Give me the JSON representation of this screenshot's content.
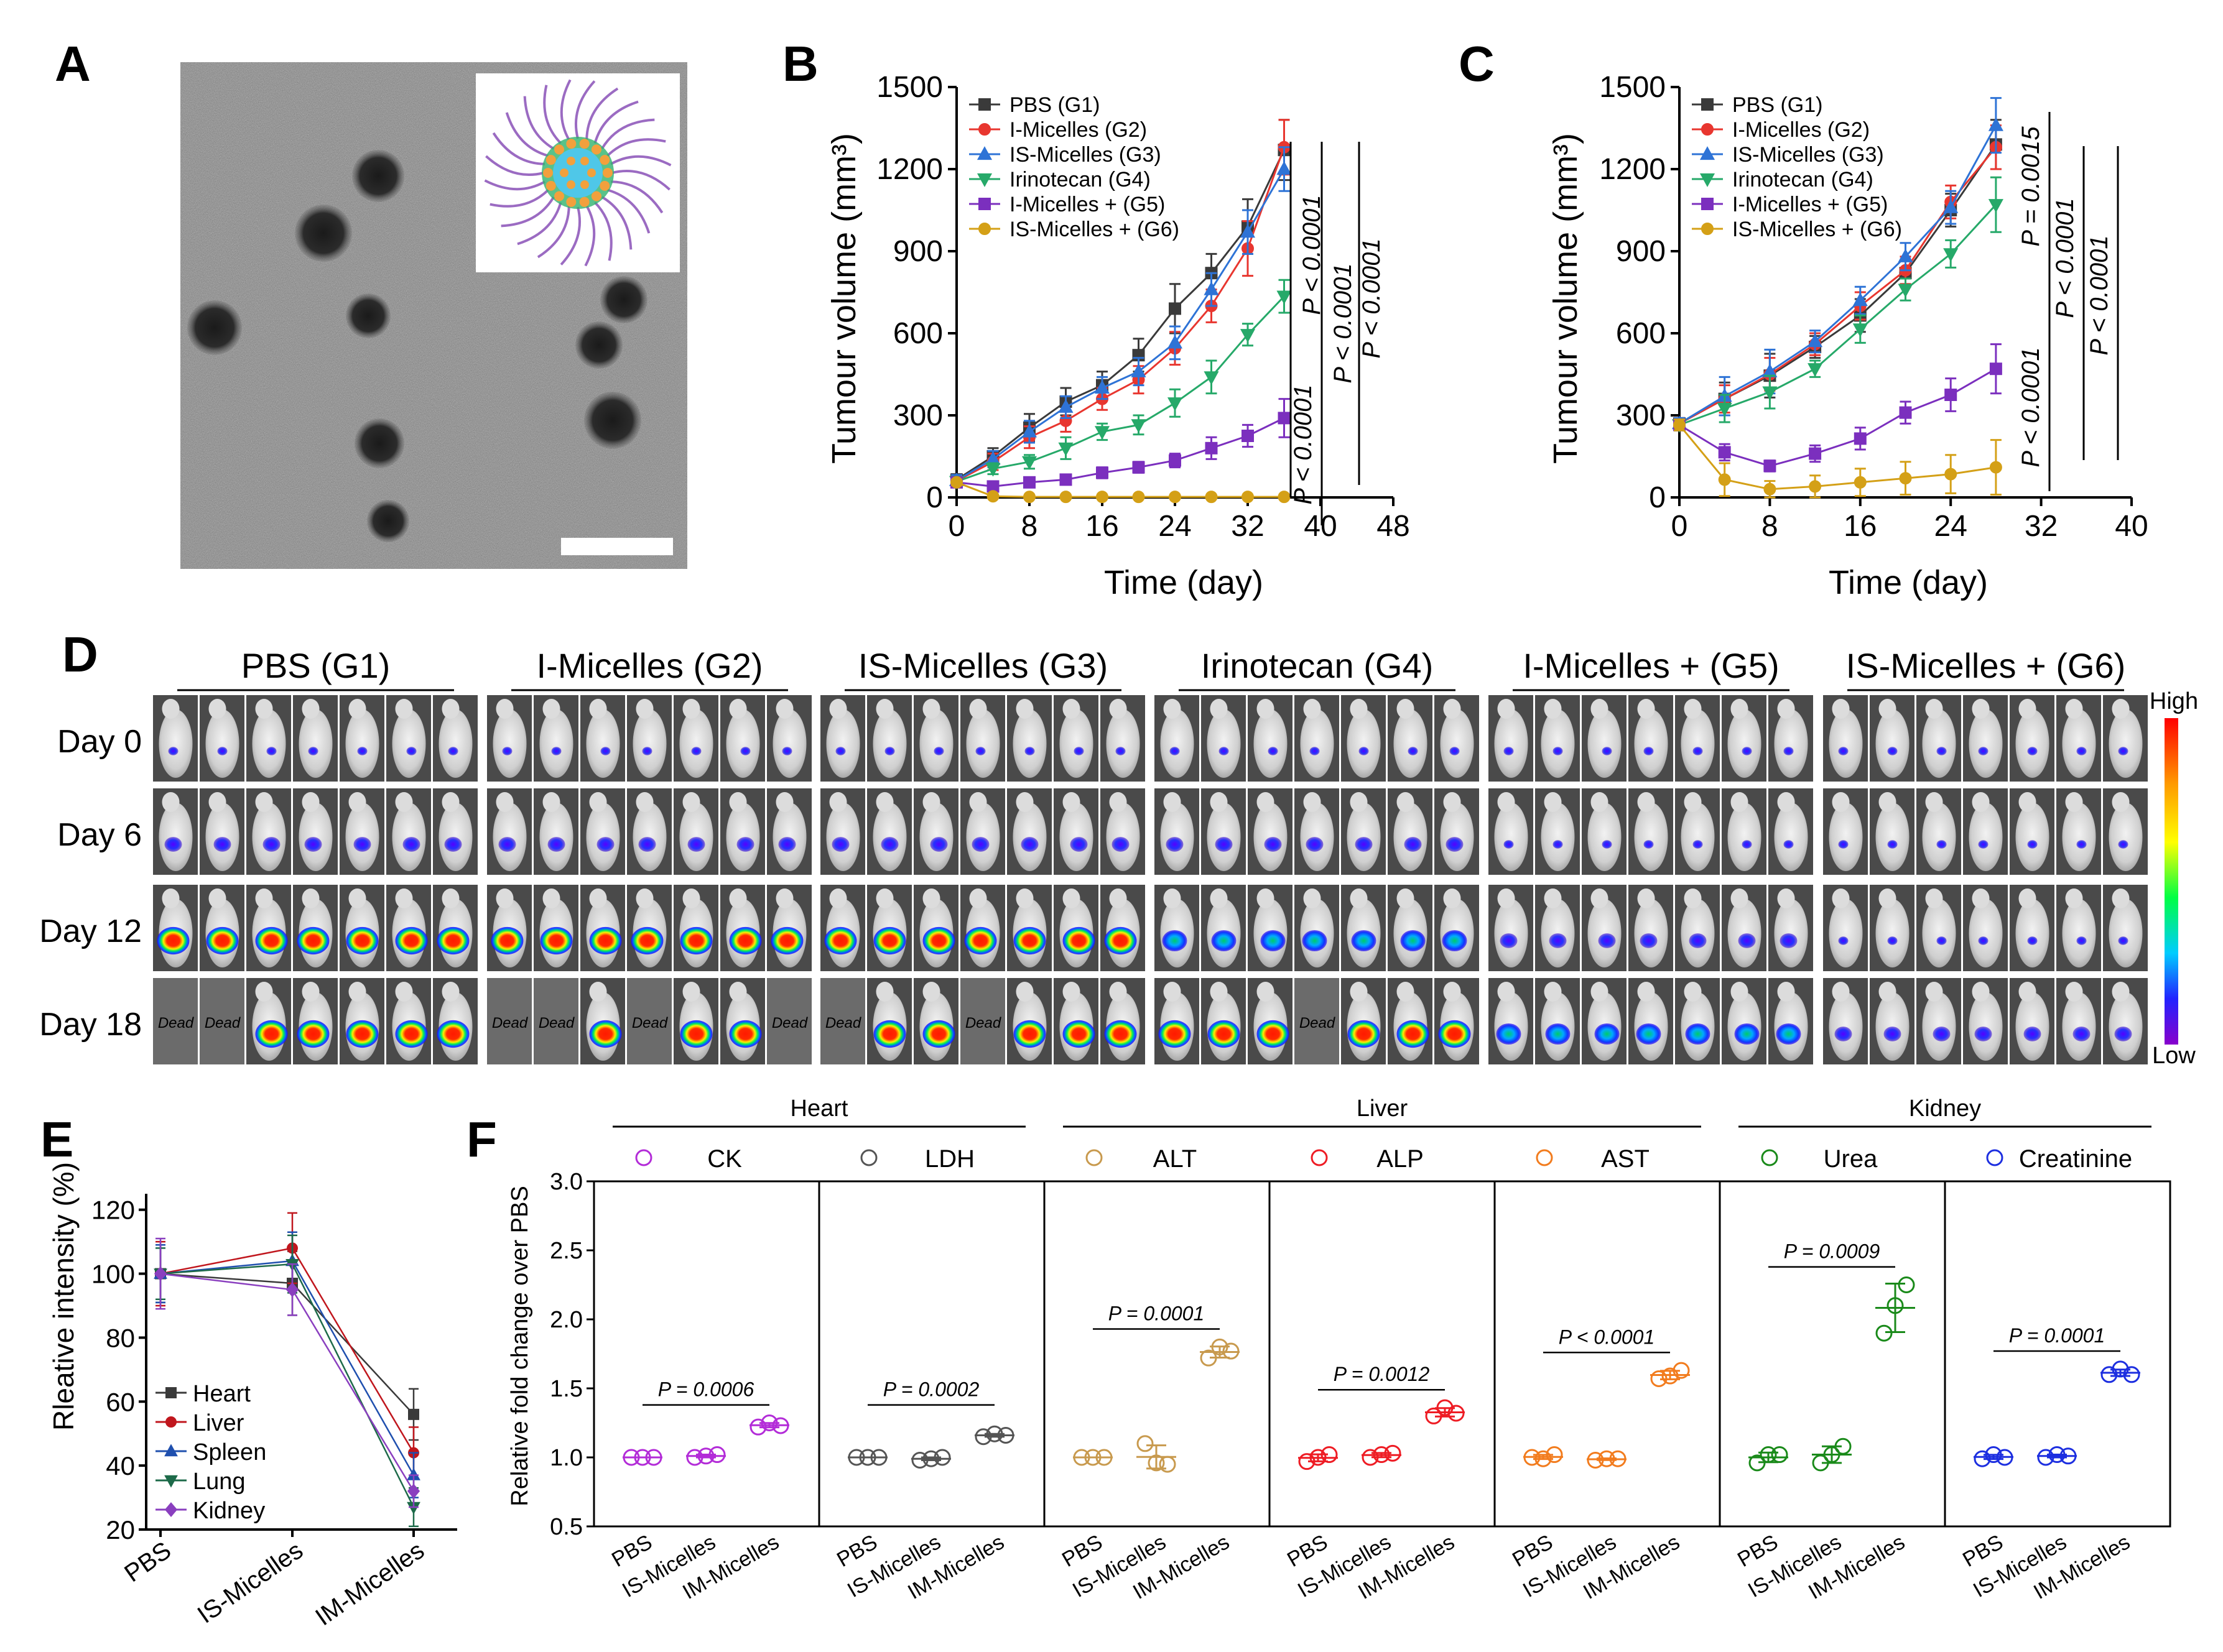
{
  "panels": {
    "A": {
      "letter": "A"
    },
    "B": {
      "letter": "B"
    },
    "C": {
      "letter": "C"
    },
    "D": {
      "letter": "D"
    },
    "E": {
      "letter": "E"
    },
    "F": {
      "letter": "F"
    }
  },
  "colors": {
    "G1": "#3a3a3a",
    "G2": "#e8362f",
    "G3": "#2e73d6",
    "G4": "#26a969",
    "G5": "#7b2fbe",
    "G6": "#d4a017",
    "heart": "#3a3a3a",
    "liver": "#c0161d",
    "spleen": "#1f4fae",
    "lung": "#1d6a49",
    "kidney": "#8a3fbf",
    "CK": "#b32cd8",
    "LDH": "#555555",
    "ALT": "#c89a4e",
    "ALP": "#ee1c24",
    "AST": "#f27c1e",
    "Urea": "#1a8a1a",
    "Creatinine": "#1d2fe0"
  },
  "panelD": {
    "groups": [
      "PBS (G1)",
      "I-Micelles  (G2)",
      "IS-Micelles (G3)",
      "Irinotecan (G4)",
      "I-Micelles + (G5)",
      "IS-Micelles + (G6)"
    ],
    "days": [
      "Day 0",
      "Day 6",
      "Day 12",
      "Day 18"
    ],
    "dead_label": "Dead",
    "dead_cells": [
      [
        0,
        0
      ],
      [
        0,
        1
      ],
      [
        1,
        0
      ],
      [
        1,
        1
      ],
      [
        1,
        3
      ],
      [
        1,
        6
      ],
      [
        2,
        0
      ],
      [
        2,
        3
      ],
      [
        3,
        3
      ]
    ],
    "colorbar": {
      "high": "High",
      "low": "Low"
    },
    "mice_per_group": 7
  },
  "chart_data": [
    {
      "panel": "B",
      "type": "line",
      "xlabel": "Time (day)",
      "ylabel": "Tumour volume (mm³)",
      "xlim": [
        0,
        48
      ],
      "ylim": [
        0,
        1500
      ],
      "xticks": [
        0,
        8,
        16,
        24,
        32,
        40,
        48
      ],
      "yticks": [
        0,
        300,
        600,
        900,
        1200,
        1500
      ],
      "legend_position": "top-left",
      "x": [
        0,
        4,
        8,
        12,
        16,
        20,
        24,
        28,
        32,
        36
      ],
      "series": [
        {
          "name": "PBS (G1)",
          "marker": "square",
          "color_key": "G1",
          "values": [
            65,
            150,
            255,
            350,
            410,
            520,
            690,
            820,
            990,
            1270
          ],
          "errors": [
            20,
            30,
            50,
            50,
            50,
            60,
            90,
            70,
            100,
            110
          ]
        },
        {
          "name": "I-Micelles (G2)",
          "marker": "circle",
          "color_key": "G2",
          "values": [
            60,
            130,
            220,
            280,
            360,
            430,
            545,
            700,
            910,
            1280
          ],
          "errors": [
            20,
            30,
            40,
            40,
            40,
            50,
            60,
            60,
            100,
            100
          ]
        },
        {
          "name": "IS-Micelles (G3)",
          "marker": "triangle-up",
          "color_key": "G3",
          "values": [
            62,
            140,
            240,
            330,
            400,
            460,
            565,
            760,
            970,
            1200
          ],
          "errors": [
            20,
            30,
            40,
            40,
            40,
            50,
            60,
            60,
            80,
            80
          ]
        },
        {
          "name": "Irinotecan (G4)",
          "marker": "triangle-down",
          "color_key": "G4",
          "values": [
            58,
            105,
            130,
            180,
            240,
            265,
            345,
            440,
            595,
            735
          ],
          "errors": [
            15,
            20,
            25,
            40,
            30,
            35,
            50,
            60,
            40,
            60
          ]
        },
        {
          "name": "I-Micelles + (G5)",
          "marker": "square",
          "color_key": "G5",
          "values": [
            55,
            40,
            55,
            65,
            90,
            110,
            135,
            180,
            225,
            290
          ],
          "errors": [
            15,
            15,
            15,
            15,
            20,
            20,
            25,
            40,
            40,
            70
          ]
        },
        {
          "name": "IS-Micelles + (G6)",
          "marker": "circle",
          "color_key": "G6",
          "values": [
            55,
            4,
            2,
            2,
            2,
            2,
            2,
            2,
            2,
            2
          ],
          "errors": [
            10,
            2,
            1,
            1,
            1,
            1,
            1,
            1,
            1,
            1
          ]
        }
      ],
      "annotations": [
        "P < 0.0001",
        "P < 0.0001",
        "P < 0.0001",
        "P < 0.0001"
      ]
    },
    {
      "panel": "C",
      "type": "line",
      "xlabel": "Time (day)",
      "ylabel": "Tumour volume (mm³)",
      "xlim": [
        0,
        40
      ],
      "ylim": [
        0,
        1500
      ],
      "xticks": [
        0,
        8,
        16,
        24,
        32,
        40
      ],
      "yticks": [
        0,
        300,
        600,
        900,
        1200,
        1500
      ],
      "legend_position": "top-left",
      "x": [
        0,
        4,
        8,
        12,
        16,
        20,
        24,
        28
      ],
      "series": [
        {
          "name": "PBS (G1)",
          "marker": "square",
          "color_key": "G1",
          "values": [
            270,
            360,
            445,
            550,
            665,
            820,
            1050,
            1290
          ],
          "errors": [
            20,
            60,
            80,
            40,
            60,
            50,
            60,
            90
          ]
        },
        {
          "name": "I-Micelles (G2)",
          "marker": "circle",
          "color_key": "G2",
          "values": [
            270,
            360,
            450,
            560,
            700,
            830,
            1080,
            1280
          ],
          "errors": [
            20,
            50,
            60,
            40,
            50,
            50,
            60,
            80
          ]
        },
        {
          "name": "IS-Micelles (G3)",
          "marker": "triangle-up",
          "color_key": "G3",
          "values": [
            270,
            370,
            460,
            570,
            720,
            880,
            1060,
            1360
          ],
          "errors": [
            20,
            70,
            80,
            40,
            50,
            50,
            60,
            100
          ]
        },
        {
          "name": "Irinotecan (G4)",
          "marker": "triangle-down",
          "color_key": "G4",
          "values": [
            265,
            325,
            385,
            470,
            615,
            760,
            890,
            1070
          ],
          "errors": [
            20,
            50,
            60,
            30,
            50,
            40,
            50,
            100
          ]
        },
        {
          "name": "I-Micelles + (G5)",
          "marker": "square",
          "color_key": "G5",
          "values": [
            265,
            165,
            115,
            160,
            215,
            310,
            375,
            470
          ],
          "errors": [
            20,
            30,
            20,
            30,
            40,
            40,
            60,
            90
          ]
        },
        {
          "name": "IS-Micelles + (G6)",
          "marker": "circle",
          "color_key": "G6",
          "values": [
            265,
            65,
            30,
            40,
            55,
            70,
            85,
            110
          ],
          "errors": [
            20,
            60,
            30,
            40,
            50,
            60,
            70,
            100
          ]
        }
      ],
      "annotations": [
        "P = 0.0015",
        "P < 0.0001",
        "P < 0.0001",
        "P < 0.0001"
      ]
    },
    {
      "panel": "E",
      "type": "line",
      "ylabel": "Rleative intensity (%)",
      "ylim": [
        20,
        125
      ],
      "yticks": [
        20,
        40,
        60,
        80,
        100,
        120
      ],
      "categories": [
        "PBS",
        "IS-Micelles",
        "IM-Micelles"
      ],
      "legend_position": "bottom-left",
      "series": [
        {
          "name": "Heart",
          "marker": "square",
          "color_key": "heart",
          "values": [
            100,
            97,
            56
          ],
          "errors": [
            9,
            10,
            8
          ]
        },
        {
          "name": "Liver",
          "marker": "circle",
          "color_key": "liver",
          "values": [
            100,
            108,
            44
          ],
          "errors": [
            10,
            11,
            8
          ]
        },
        {
          "name": "Spleen",
          "marker": "triangle-up",
          "color_key": "spleen",
          "values": [
            100,
            104,
            37
          ],
          "errors": [
            9,
            9,
            7
          ]
        },
        {
          "name": "Lung",
          "marker": "triangle-down",
          "color_key": "lung",
          "values": [
            100,
            103,
            27
          ],
          "errors": [
            8,
            9,
            6
          ]
        },
        {
          "name": "Kidney",
          "marker": "diamond",
          "color_key": "kidney",
          "values": [
            100,
            95,
            32
          ],
          "errors": [
            11,
            8,
            5
          ]
        }
      ]
    },
    {
      "panel": "F",
      "type": "scatter",
      "ylabel": "Relative fold change over PBS",
      "ylim": [
        0.5,
        3.0
      ],
      "yticks": [
        "0.5",
        "1.0",
        "1.5",
        "2.0",
        "2.5",
        "3.0"
      ],
      "categories": [
        "PBS",
        "IS-Micelles",
        "IM-Micelles"
      ],
      "organ_groups": [
        {
          "name": "Heart",
          "markers": [
            "CK",
            "LDH"
          ]
        },
        {
          "name": "Liver",
          "markers": [
            "ALT",
            "ALP",
            "AST"
          ]
        },
        {
          "name": "Kidney",
          "markers": [
            "Urea",
            "Creatinine"
          ]
        }
      ],
      "subplots": [
        {
          "name": "CK",
          "color_key": "CK",
          "points": [
            [
              1.0,
              1.0,
              1.0
            ],
            [
              1.0,
              1.01,
              1.02
            ],
            [
              1.22,
              1.25,
              1.23
            ]
          ],
          "p_value": "P = 0.0006"
        },
        {
          "name": "LDH",
          "color_key": "LDH",
          "points": [
            [
              1.0,
              1.0,
              1.0
            ],
            [
              0.98,
              0.99,
              1.0
            ],
            [
              1.15,
              1.17,
              1.16
            ]
          ],
          "p_value": "P = 0.0002"
        },
        {
          "name": "ALT",
          "color_key": "ALT",
          "points": [
            [
              1.0,
              1.0,
              1.0
            ],
            [
              1.1,
              0.96,
              0.95
            ],
            [
              1.72,
              1.8,
              1.77
            ]
          ],
          "p_value": "P = 0.0001"
        },
        {
          "name": "ALP",
          "color_key": "ALP",
          "points": [
            [
              0.97,
              1.0,
              1.02
            ],
            [
              1.0,
              1.02,
              1.03
            ],
            [
              1.3,
              1.36,
              1.32
            ]
          ],
          "p_value": "P = 0.0012"
        },
        {
          "name": "AST",
          "color_key": "AST",
          "points": [
            [
              1.0,
              0.99,
              1.02
            ],
            [
              0.98,
              0.99,
              0.99
            ],
            [
              1.57,
              1.59,
              1.63
            ]
          ],
          "p_value": "P < 0.0001"
        },
        {
          "name": "Urea",
          "color_key": "Urea",
          "points": [
            [
              0.96,
              1.02,
              1.02
            ],
            [
              0.96,
              1.02,
              1.08
            ],
            [
              1.9,
              2.1,
              2.25
            ]
          ],
          "p_value": "P = 0.0009"
        },
        {
          "name": "Creatinine",
          "color_key": "Creatinine",
          "points": [
            [
              0.99,
              1.02,
              1.0
            ],
            [
              1.0,
              1.02,
              1.01
            ],
            [
              1.6,
              1.64,
              1.6
            ]
          ],
          "p_value": "P = 0.0001"
        }
      ]
    }
  ]
}
